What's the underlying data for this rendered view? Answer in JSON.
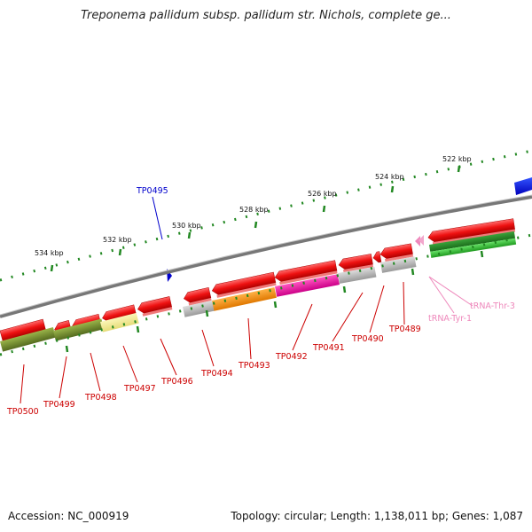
{
  "title": "Treponema pallidum subsp. pallidum str. Nichols, complete ge...",
  "footer": {
    "accession": "Accession: NC_000919",
    "genome_info": "Topology: circular; Length: 1,138,011 bp; Genes: 1,087"
  },
  "scale_labels": [
    "522 kbp",
    "524 kbp",
    "526 kbp",
    "528 kbp",
    "530 kbp",
    "532 kbp",
    "534 kbp"
  ],
  "gene_labels": [
    "TP0500",
    "TP0499",
    "TP0498",
    "TP0497",
    "TP0496",
    "TP0494",
    "TP0493",
    "TP0492",
    "TP0491",
    "TP0490",
    "TP0489"
  ],
  "highlighted_gene": "TP0495",
  "trna_labels": [
    "tRNA-Thr-3",
    "tRNA-Tyr-1"
  ],
  "colors": {
    "cds": "#ee1111",
    "gene_label": "#cc0000",
    "highlight": "#0000cc",
    "trna": "#ee88bb",
    "backbone": "#888888",
    "ticks": "#228822",
    "olive": "#6b8e23",
    "khaki": "#eee88a",
    "orange": "#ff8c00",
    "magenta": "#ee1199",
    "gray": "#b0b0b0",
    "green": "#2db82d"
  }
}
